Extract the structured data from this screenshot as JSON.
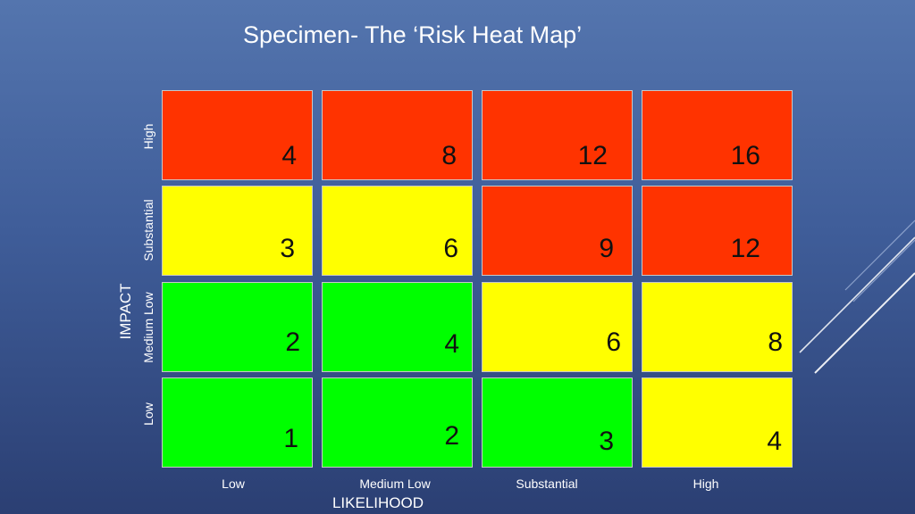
{
  "title": "Specimen- The ‘Risk Heat Map’",
  "axes": {
    "y_label": "IMPACT",
    "x_label": "LIKELIHOOD"
  },
  "impact_levels": [
    "High",
    "Substantial",
    "Medium Low",
    "Low"
  ],
  "likelihood_levels": [
    "Low",
    "Medium Low",
    "Substantial",
    "High"
  ],
  "colors": {
    "red": "#ff3300",
    "yellow": "#ffff00",
    "green": "#00ff00"
  },
  "grid": [
    [
      {
        "value": "4",
        "color": "red"
      },
      {
        "value": "8",
        "color": "red"
      },
      {
        "value": "12",
        "color": "red"
      },
      {
        "value": "16",
        "color": "red"
      }
    ],
    [
      {
        "value": "3",
        "color": "yellow"
      },
      {
        "value": "6",
        "color": "yellow"
      },
      {
        "value": "9",
        "color": "red"
      },
      {
        "value": "12",
        "color": "red"
      }
    ],
    [
      {
        "value": "2",
        "color": "green"
      },
      {
        "value": "4",
        "color": "green"
      },
      {
        "value": "6",
        "color": "yellow"
      },
      {
        "value": "8",
        "color": "yellow"
      }
    ],
    [
      {
        "value": "1",
        "color": "green"
      },
      {
        "value": "2",
        "color": "green"
      },
      {
        "value": "3",
        "color": "green"
      },
      {
        "value": "4",
        "color": "yellow"
      }
    ]
  ]
}
